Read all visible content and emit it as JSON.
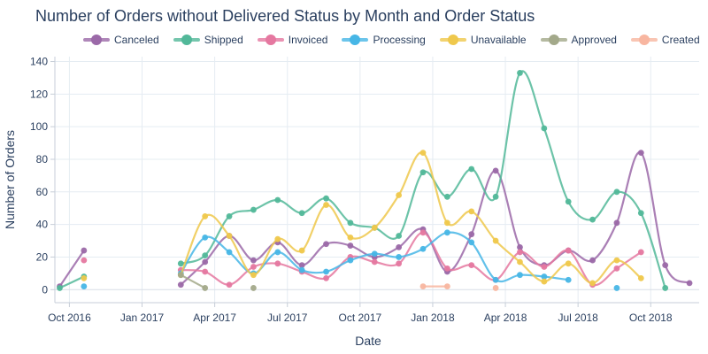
{
  "chart_data": {
    "type": "line",
    "title": "Number of Orders without Delivered Status by Month and Order Status",
    "xlabel": "Date",
    "ylabel": "Number of Orders",
    "ylim": [
      -8,
      143
    ],
    "yticks": [
      0,
      20,
      40,
      60,
      80,
      100,
      120,
      140
    ],
    "x_range_months": [
      0.4,
      27.0
    ],
    "xticks": [
      {
        "label": "Oct 2016",
        "month": 1
      },
      {
        "label": "Jan 2017",
        "month": 4
      },
      {
        "label": "Apr 2017",
        "month": 7
      },
      {
        "label": "Jul 2017",
        "month": 10
      },
      {
        "label": "Oct 2017",
        "month": 13
      },
      {
        "label": "Jan 2018",
        "month": 16
      },
      {
        "label": "Apr 2018",
        "month": 19
      },
      {
        "label": "Jul 2018",
        "month": 22
      },
      {
        "label": "Oct 2018",
        "month": 25
      }
    ],
    "series": [
      {
        "name": "Canceled",
        "color": "#9b69a8",
        "points": [
          [
            0.6,
            2
          ],
          [
            1.6,
            24
          ],
          [
            5.6,
            3
          ],
          [
            6.6,
            17
          ],
          [
            7.6,
            33
          ],
          [
            8.6,
            18
          ],
          [
            9.6,
            29
          ],
          [
            10.6,
            15
          ],
          [
            11.6,
            28
          ],
          [
            12.6,
            27
          ],
          [
            13.6,
            20
          ],
          [
            14.6,
            26
          ],
          [
            15.6,
            37
          ],
          [
            16.6,
            11
          ],
          [
            17.6,
            34
          ],
          [
            18.6,
            73
          ],
          [
            19.6,
            26
          ],
          [
            20.6,
            15
          ],
          [
            21.6,
            24
          ],
          [
            22.6,
            18
          ],
          [
            23.6,
            41
          ],
          [
            24.6,
            84
          ],
          [
            25.6,
            15
          ],
          [
            26.6,
            4
          ]
        ]
      },
      {
        "name": "Shipped",
        "color": "#52b899",
        "points": [
          [
            0.6,
            1
          ],
          [
            1.6,
            8
          ],
          [
            5.6,
            16
          ],
          [
            6.6,
            21
          ],
          [
            7.6,
            45
          ],
          [
            8.6,
            49
          ],
          [
            9.6,
            55
          ],
          [
            10.6,
            47
          ],
          [
            11.6,
            56
          ],
          [
            12.6,
            41
          ],
          [
            13.6,
            38
          ],
          [
            14.6,
            33
          ],
          [
            15.6,
            72
          ],
          [
            16.6,
            57
          ],
          [
            17.6,
            74
          ],
          [
            18.6,
            57
          ],
          [
            19.6,
            133
          ],
          [
            20.6,
            99
          ],
          [
            21.6,
            54
          ],
          [
            22.6,
            43
          ],
          [
            23.6,
            60
          ],
          [
            24.6,
            47
          ],
          [
            25.6,
            1
          ]
        ]
      },
      {
        "name": "Invoiced",
        "color": "#e578a0",
        "points": [
          [
            1.6,
            18
          ],
          [
            5.6,
            12
          ],
          [
            6.6,
            11
          ],
          [
            7.6,
            3
          ],
          [
            8.6,
            14
          ],
          [
            9.6,
            16
          ],
          [
            10.6,
            11
          ],
          [
            11.6,
            7
          ],
          [
            12.6,
            20
          ],
          [
            13.6,
            17
          ],
          [
            14.6,
            16
          ],
          [
            15.6,
            35
          ],
          [
            16.6,
            13
          ],
          [
            17.6,
            15
          ],
          [
            18.6,
            6
          ],
          [
            19.6,
            23
          ],
          [
            20.6,
            14
          ],
          [
            21.6,
            24
          ],
          [
            22.6,
            3
          ],
          [
            23.6,
            13
          ],
          [
            24.6,
            23
          ]
        ]
      },
      {
        "name": "Processing",
        "color": "#47b6e6",
        "points": [
          [
            1.6,
            2
          ],
          [
            5.6,
            10
          ],
          [
            6.6,
            32
          ],
          [
            7.6,
            23
          ],
          [
            8.6,
            10
          ],
          [
            9.6,
            23
          ],
          [
            10.6,
            12
          ],
          [
            11.6,
            11
          ],
          [
            12.6,
            18
          ],
          [
            13.6,
            22
          ],
          [
            14.6,
            20
          ],
          [
            15.6,
            25
          ],
          [
            16.6,
            35
          ],
          [
            17.6,
            29
          ],
          [
            18.6,
            6
          ],
          [
            19.6,
            9
          ],
          [
            20.6,
            8
          ],
          [
            21.6,
            6
          ],
          [
            23.6,
            1
          ]
        ]
      },
      {
        "name": "Unavailable",
        "color": "#efc84c",
        "points": [
          [
            1.6,
            7
          ],
          [
            5.6,
            9
          ],
          [
            6.6,
            45
          ],
          [
            7.6,
            33
          ],
          [
            8.6,
            9
          ],
          [
            9.6,
            31
          ],
          [
            10.6,
            24
          ],
          [
            11.6,
            52
          ],
          [
            12.6,
            32
          ],
          [
            13.6,
            38
          ],
          [
            14.6,
            58
          ],
          [
            15.6,
            84
          ],
          [
            16.6,
            41
          ],
          [
            17.6,
            48
          ],
          [
            18.6,
            30
          ],
          [
            19.6,
            17
          ],
          [
            20.6,
            5
          ],
          [
            21.6,
            16
          ],
          [
            22.6,
            4
          ],
          [
            23.6,
            18
          ],
          [
            24.6,
            7
          ]
        ]
      },
      {
        "name": "Approved",
        "color": "#a3a98a",
        "points": [
          [
            5.6,
            9
          ],
          [
            6.6,
            1
          ],
          [
            8.6,
            1
          ]
        ]
      },
      {
        "name": "Created",
        "color": "#f8b6a0",
        "points": [
          [
            15.6,
            2
          ],
          [
            16.6,
            2
          ],
          [
            18.6,
            1
          ]
        ]
      }
    ]
  }
}
